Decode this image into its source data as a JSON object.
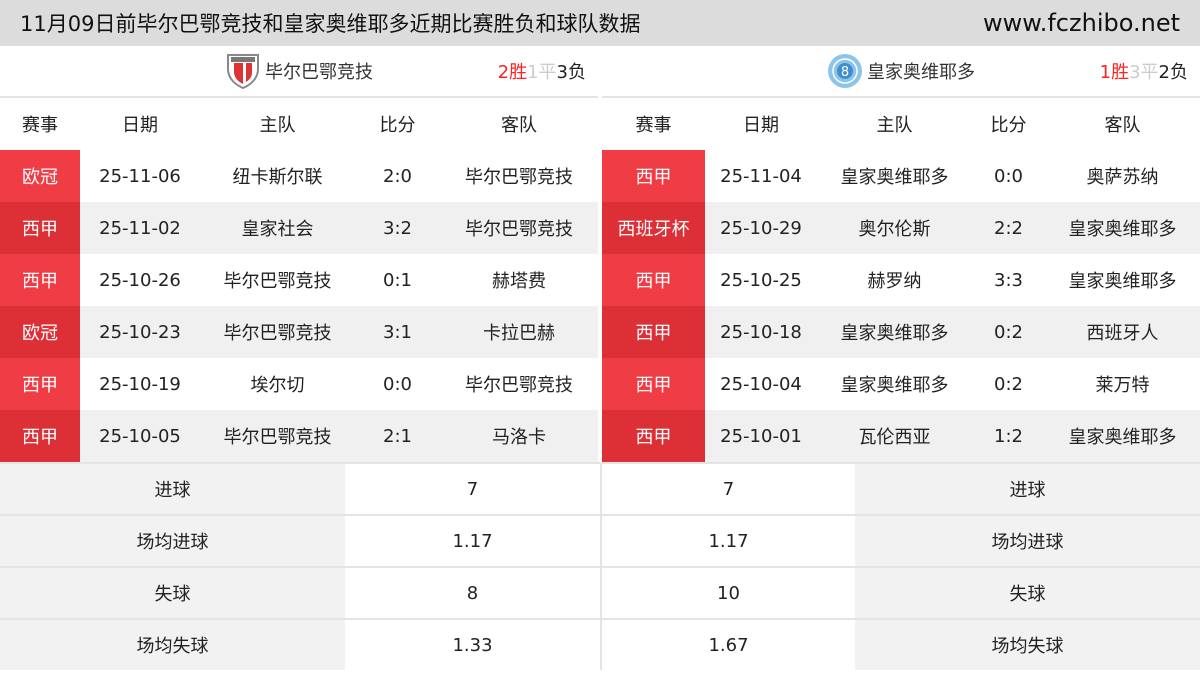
{
  "header": {
    "title": "11月09日前毕尔巴鄂竞技和皇家奥维耶多近期比赛胜负和球队数据",
    "site": "www.fczhibo.net"
  },
  "columns": [
    "赛事",
    "日期",
    "主队",
    "比分",
    "客队"
  ],
  "left": {
    "team": "毕尔巴鄂竞技",
    "logo_icon": "athletic-bilbao-crest",
    "record": {
      "win": "2胜",
      "draw": "1平",
      "loss": "3负"
    },
    "matches": [
      {
        "comp": "欧冠",
        "date": "25-11-06",
        "home": "纽卡斯尔联",
        "score": "2:0",
        "away": "毕尔巴鄂竞技"
      },
      {
        "comp": "西甲",
        "date": "25-11-02",
        "home": "皇家社会",
        "score": "3:2",
        "away": "毕尔巴鄂竞技"
      },
      {
        "comp": "西甲",
        "date": "25-10-26",
        "home": "毕尔巴鄂竞技",
        "score": "0:1",
        "away": "赫塔费"
      },
      {
        "comp": "欧冠",
        "date": "25-10-23",
        "home": "毕尔巴鄂竞技",
        "score": "3:1",
        "away": "卡拉巴赫"
      },
      {
        "comp": "西甲",
        "date": "25-10-19",
        "home": "埃尔切",
        "score": "0:0",
        "away": "毕尔巴鄂竞技"
      },
      {
        "comp": "西甲",
        "date": "25-10-05",
        "home": "毕尔巴鄂竞技",
        "score": "2:1",
        "away": "马洛卡"
      }
    ]
  },
  "right": {
    "team": "皇家奥维耶多",
    "logo_icon": "real-oviedo-crest",
    "record": {
      "win": "1胜",
      "draw": "3平",
      "loss": "2负"
    },
    "matches": [
      {
        "comp": "西甲",
        "date": "25-11-04",
        "home": "皇家奥维耶多",
        "score": "0:0",
        "away": "奥萨苏纳"
      },
      {
        "comp": "西班牙杯",
        "date": "25-10-29",
        "home": "奥尔伦斯",
        "score": "2:2",
        "away": "皇家奥维耶多"
      },
      {
        "comp": "西甲",
        "date": "25-10-25",
        "home": "赫罗纳",
        "score": "3:3",
        "away": "皇家奥维耶多"
      },
      {
        "comp": "西甲",
        "date": "25-10-18",
        "home": "皇家奥维耶多",
        "score": "0:2",
        "away": "西班牙人"
      },
      {
        "comp": "西甲",
        "date": "25-10-04",
        "home": "皇家奥维耶多",
        "score": "0:2",
        "away": "莱万特"
      },
      {
        "comp": "西甲",
        "date": "25-10-01",
        "home": "瓦伦西亚",
        "score": "1:2",
        "away": "皇家奥维耶多"
      }
    ]
  },
  "stats": [
    {
      "label": "进球",
      "left": "7",
      "right": "7"
    },
    {
      "label": "场均进球",
      "left": "1.17",
      "right": "1.17"
    },
    {
      "label": "失球",
      "left": "8",
      "right": "10"
    },
    {
      "label": "场均失球",
      "left": "1.33",
      "right": "1.67"
    }
  ],
  "colors": {
    "win": "#ff2222",
    "draw": "#cccccc",
    "comp_odd": "#f03c44",
    "comp_even": "#dd2f36"
  }
}
